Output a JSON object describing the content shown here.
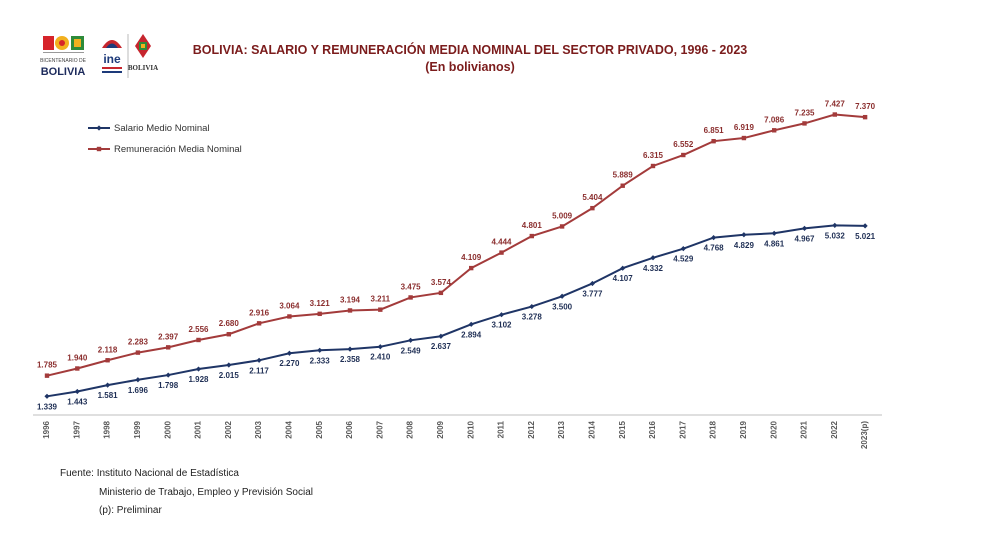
{
  "header": {
    "logo_bicentenario": [
      "BICENTENARIO DE",
      "BOLIVIA"
    ],
    "logo_ine": "ine",
    "logo_bolivia_seal": "BOLIVIA"
  },
  "chart_data": {
    "type": "line",
    "title": "BOLIVIA: SALARIO Y REMUNERACIÓN MEDIA NOMINAL DEL SECTOR PRIVADO, 1996 - 2023",
    "subtitle": "(En bolivianos)",
    "xlabel": "",
    "ylabel": "",
    "categories": [
      "1996",
      "1997",
      "1998",
      "1999",
      "2000",
      "2001",
      "2002",
      "2003",
      "2004",
      "2005",
      "2006",
      "2007",
      "2008",
      "2009",
      "2010",
      "2011",
      "2012",
      "2013",
      "2014",
      "2015",
      "2016",
      "2017",
      "2018",
      "2019",
      "2020",
      "2021",
      "2022",
      "2023(p)"
    ],
    "series": [
      {
        "name": "Salario Medio Nominal",
        "color": "#1f3566",
        "marker": "diamond",
        "values": [
          1339,
          1443,
          1581,
          1696,
          1798,
          1928,
          2015,
          2117,
          2270,
          2333,
          2358,
          2410,
          2549,
          2637,
          2894,
          3102,
          3278,
          3500,
          3777,
          4107,
          4332,
          4529,
          4768,
          4829,
          4861,
          4967,
          5032,
          5021
        ],
        "labels": [
          "1.339",
          "1.443",
          "1.581",
          "1.696",
          "1.798",
          "1.928",
          "2.015",
          "2.117",
          "2.270",
          "2.333",
          "2.358",
          "2.410",
          "2.549",
          "2.637",
          "2.894",
          "3.102",
          "3.278",
          "3.500",
          "3.777",
          "4.107",
          "4.332",
          "4.529",
          "4.768",
          "4.829",
          "4.861",
          "4.967",
          "5.032",
          "5.021"
        ]
      },
      {
        "name": "Remuneración Media Nominal",
        "color": "#a33b3b",
        "marker": "square",
        "values": [
          1785,
          1940,
          2118,
          2283,
          2397,
          2556,
          2680,
          2916,
          3064,
          3121,
          3194,
          3211,
          3475,
          3574,
          4109,
          4444,
          4801,
          5009,
          5404,
          5889,
          6315,
          6552,
          6851,
          6919,
          7086,
          7235,
          7427,
          7370
        ],
        "labels": [
          "1.785",
          "1.940",
          "2.118",
          "2.283",
          "2.397",
          "2.556",
          "2.680",
          "2.916",
          "3.064",
          "3.121",
          "3.194",
          "3.211",
          "3.475",
          "3.574",
          "4.109",
          "4.444",
          "4.801",
          "5.009",
          "5.404",
          "5.889",
          "6.315",
          "6.552",
          "6.851",
          "6.919",
          "7.086",
          "7.235",
          "7.427",
          "7.370"
        ]
      }
    ],
    "ylim": [
      1000,
      8000
    ],
    "grid": false,
    "legend_position": "top-left"
  },
  "footer": {
    "source_label": "Fuente: Instituto Nacional de Estadística",
    "source_line2": "Ministerio de Trabajo, Empleo y Previsión Social",
    "note": "(p): Preliminar"
  }
}
